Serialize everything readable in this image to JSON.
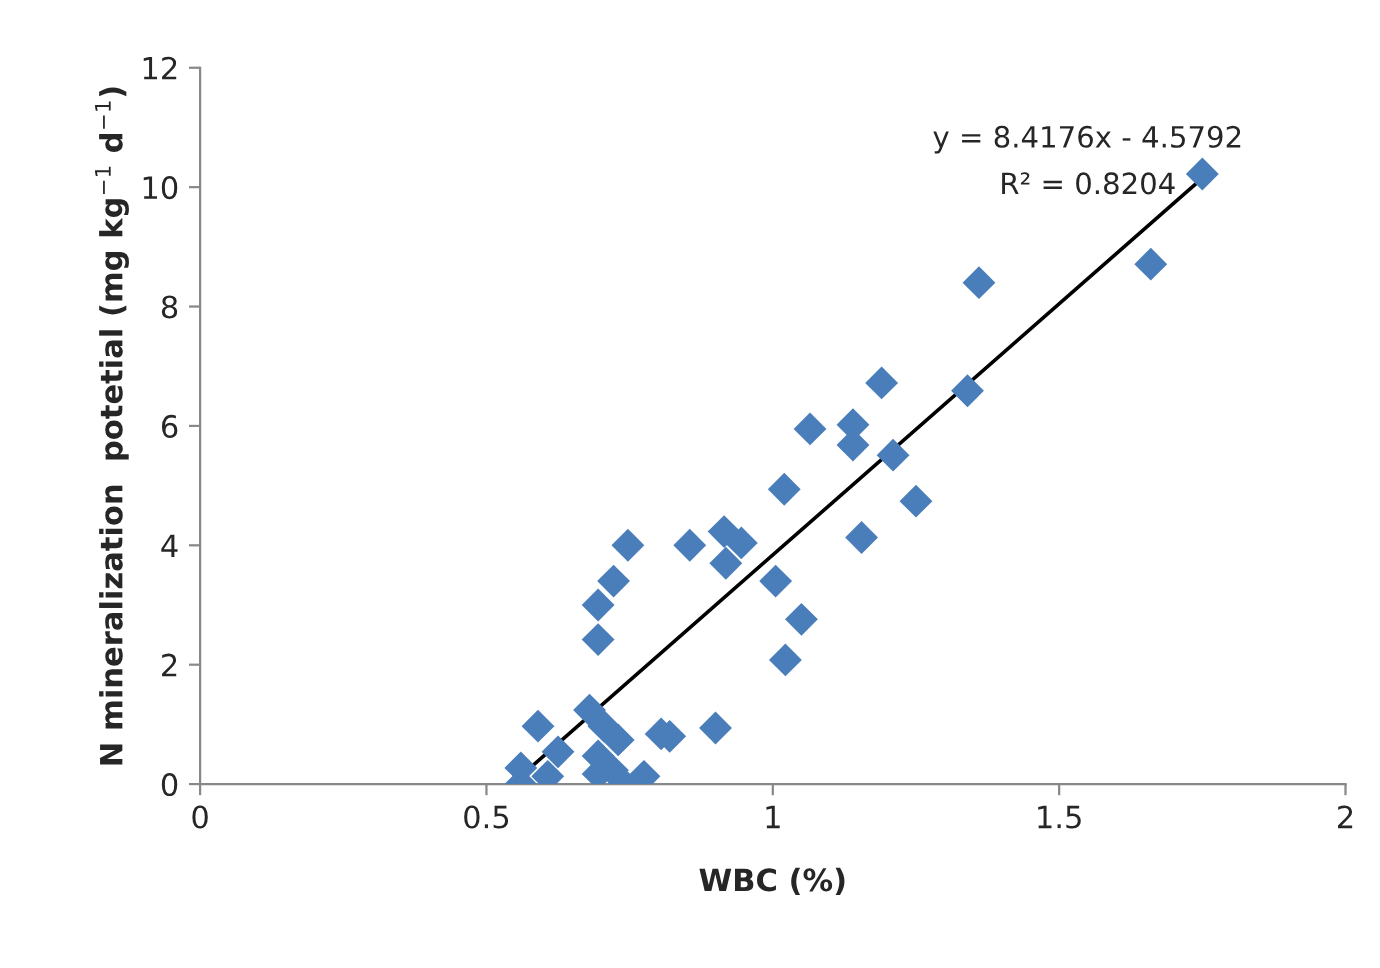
{
  "chart_data": {
    "type": "scatter",
    "xlabel": "WBC (%)",
    "ylabel": "N mineralization  potetial (mg kg$^{−1}$ d$^{−1}$)",
    "xlim": [
      0,
      2
    ],
    "xticks": [
      0,
      0.5,
      1,
      1.5,
      2
    ],
    "ylim": [
      0,
      12
    ],
    "yticks": [
      0,
      2,
      4,
      6,
      8,
      10,
      12
    ],
    "grid": false,
    "series": [
      {
        "color": "#4a7ebb",
        "marker": "diamond",
        "x": [
          1.75,
          1.66,
          1.36,
          1.19,
          1.34,
          1.065,
          1.14,
          1.14,
          1.21,
          1.02,
          1.25,
          1.155,
          0.915,
          0.945,
          0.918,
          0.855,
          0.747,
          0.722,
          1.005,
          1.05,
          1.022,
          0.695,
          0.695,
          0.59,
          0.68,
          0.705,
          0.73,
          0.625,
          0.56,
          0.607,
          0.56,
          0.695,
          0.695,
          0.74,
          0.775,
          0.805,
          0.82,
          0.9,
          0.72
        ],
        "values": [
          10.22,
          8.71,
          8.4,
          6.72,
          6.59,
          5.95,
          6.02,
          5.68,
          5.51,
          4.94,
          4.74,
          4.13,
          4.23,
          4.04,
          3.7,
          4.0,
          4.0,
          3.4,
          3.4,
          2.76,
          2.08,
          3.0,
          2.42,
          0.97,
          1.24,
          0.97,
          0.74,
          0.54,
          0.27,
          0.13,
          0.0,
          0.47,
          0.17,
          0.0,
          0.13,
          0.84,
          0.8,
          0.94,
          0.23
        ]
      },
      {
        "type": "line",
        "marker": "none",
        "color": "#000000",
        "x": [
          0.544,
          1.75
        ],
        "values": [
          0.0,
          10.15
        ]
      }
    ],
    "annotations": [
      "y = 8.4176x - 4.5792",
      "R² = 0.8204"
    ]
  }
}
